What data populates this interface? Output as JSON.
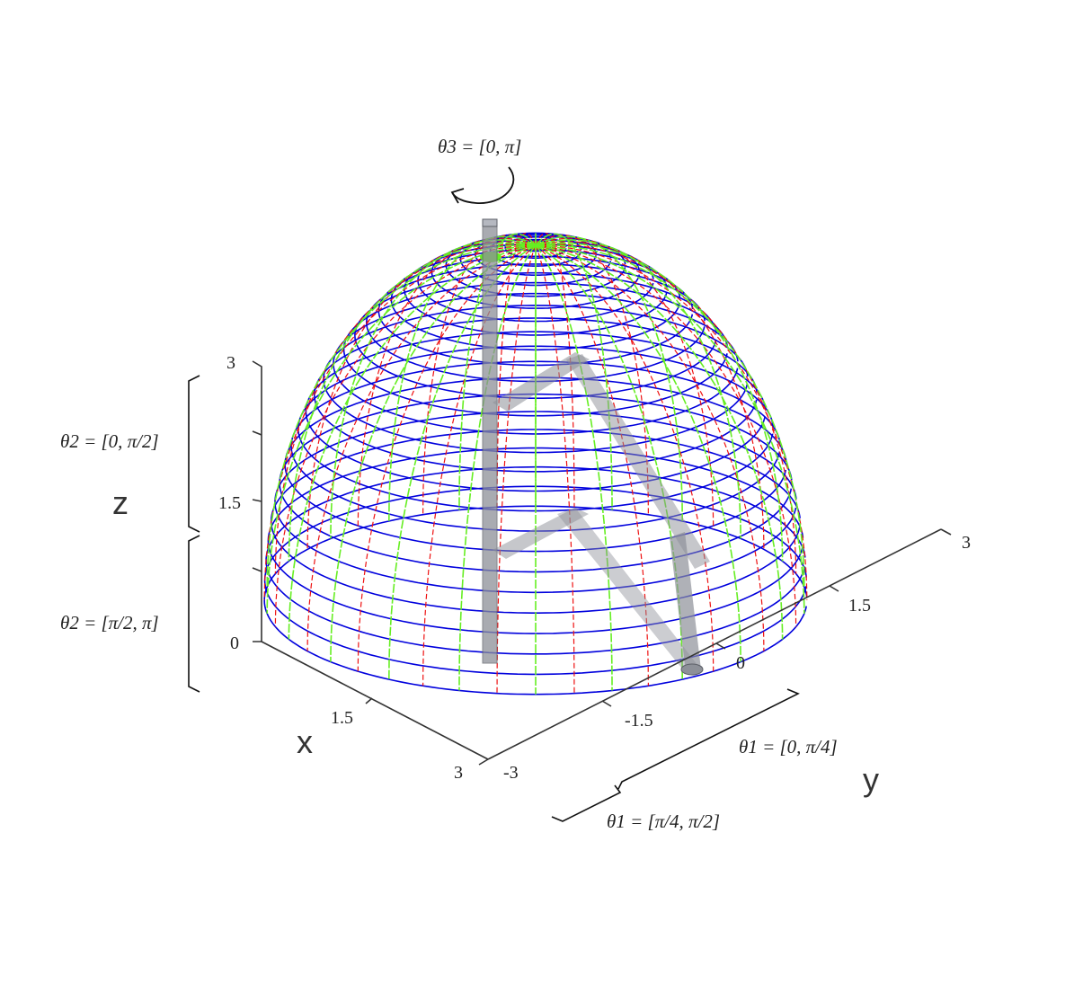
{
  "labels": {
    "theta3": "θ3 = [0, π]",
    "theta2_upper": "θ2 = [0, π/2]",
    "theta2_lower": "θ2 = [π/2, π]",
    "theta1_near": "θ1 = [0, π/4]",
    "theta1_far": "θ1 = [π/4, π/2]"
  },
  "axes": {
    "x": {
      "name": "x",
      "ticks": [
        "1.5",
        "3"
      ]
    },
    "y": {
      "name": "y",
      "ticks": [
        "-3",
        "-1.5",
        "0",
        "1.5",
        "3"
      ]
    },
    "z": {
      "name": "z",
      "ticks": [
        "0",
        "1.5",
        "3"
      ]
    }
  },
  "colors": {
    "wire_blue": "#0000dd",
    "wire_green": "#66ee22",
    "wire_red": "#ee1111",
    "link_gray": "#8d9098",
    "axis": "#333333"
  },
  "icons": {
    "rotation": "rotation-arrow-icon"
  }
}
